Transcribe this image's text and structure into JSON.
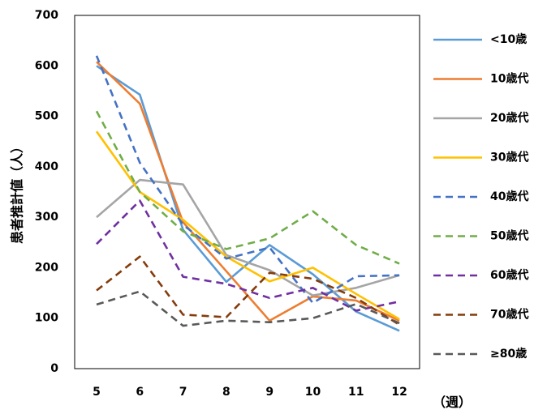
{
  "chart_data": {
    "type": "line",
    "title": "",
    "ylabel": "患者推計値（人）",
    "xlabel": "（週）",
    "x": [
      "5",
      "6",
      "7",
      "8",
      "9",
      "10",
      "11",
      "12"
    ],
    "ylim": [
      0,
      700
    ],
    "yticks": [
      0,
      100,
      200,
      300,
      400,
      500,
      600,
      700
    ],
    "grid": false,
    "legend_position": "right",
    "series": [
      {
        "name": "<10歳",
        "color": "#5b9bd5",
        "dash": "solid",
        "values": [
          600,
          543,
          275,
          172,
          245,
          187,
          113,
          75
        ]
      },
      {
        "name": "10歳代",
        "color": "#ed7d31",
        "dash": "solid",
        "values": [
          608,
          525,
          290,
          193,
          95,
          143,
          135,
          95
        ]
      },
      {
        "name": "20歳代",
        "color": "#a5a5a5",
        "dash": "solid",
        "values": [
          300,
          374,
          365,
          225,
          195,
          145,
          160,
          185
        ]
      },
      {
        "name": "30歳代",
        "color": "#ffc000",
        "dash": "solid",
        "values": [
          470,
          350,
          295,
          222,
          173,
          200,
          148,
          98
        ]
      },
      {
        "name": "40歳代",
        "color": "#4472c4",
        "dash": "dashed",
        "values": [
          620,
          408,
          285,
          218,
          240,
          130,
          183,
          185
        ]
      },
      {
        "name": "50歳代",
        "color": "#70ad47",
        "dash": "dashed",
        "values": [
          510,
          350,
          272,
          237,
          258,
          312,
          245,
          208
        ]
      },
      {
        "name": "60歳代",
        "color": "#7030a0",
        "dash": "dashed",
        "values": [
          247,
          333,
          182,
          168,
          140,
          160,
          115,
          133
        ]
      },
      {
        "name": "70歳代",
        "color": "#843c0c",
        "dash": "dashed",
        "values": [
          155,
          222,
          107,
          102,
          190,
          178,
          140,
          87
        ]
      },
      {
        "name": "≥80歳",
        "color": "#595959",
        "dash": "dashed",
        "values": [
          127,
          153,
          85,
          95,
          92,
          100,
          128,
          90
        ]
      }
    ]
  }
}
